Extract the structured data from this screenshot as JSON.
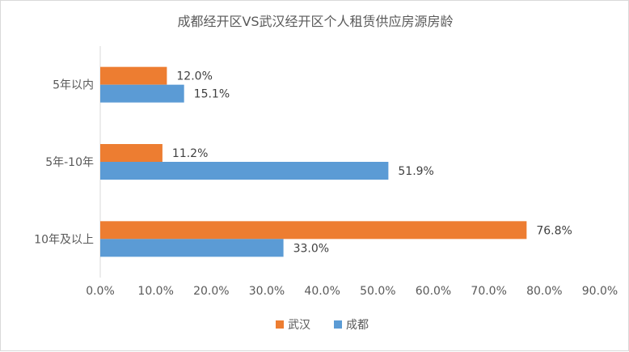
{
  "chart_data": {
    "type": "bar",
    "orientation": "horizontal",
    "title": "成都经开区VS武汉经开区个人租赁供应房源房龄",
    "categories": [
      "5年以内",
      "5年-10年",
      "10年及以上"
    ],
    "series": [
      {
        "name": "武汉",
        "values": [
          12.0,
          11.2,
          76.8
        ],
        "color": "#ED7D31"
      },
      {
        "name": "成都",
        "values": [
          15.1,
          51.9,
          33.0
        ],
        "color": "#5B9BD5"
      }
    ],
    "data_labels": [
      [
        "12.0%",
        "11.2%",
        "76.8%"
      ],
      [
        "15.1%",
        "51.9%",
        "33.0%"
      ]
    ],
    "xlim": [
      0,
      90
    ],
    "x_ticks": [
      "0.0%",
      "10.0%",
      "20.0%",
      "30.0%",
      "40.0%",
      "50.0%",
      "60.0%",
      "70.0%",
      "80.0%",
      "90.0%"
    ],
    "x_tick_step": 10,
    "xlabel": "",
    "ylabel": "",
    "grid": false,
    "legend_position": "bottom",
    "legend": [
      "武汉",
      "成都"
    ]
  }
}
